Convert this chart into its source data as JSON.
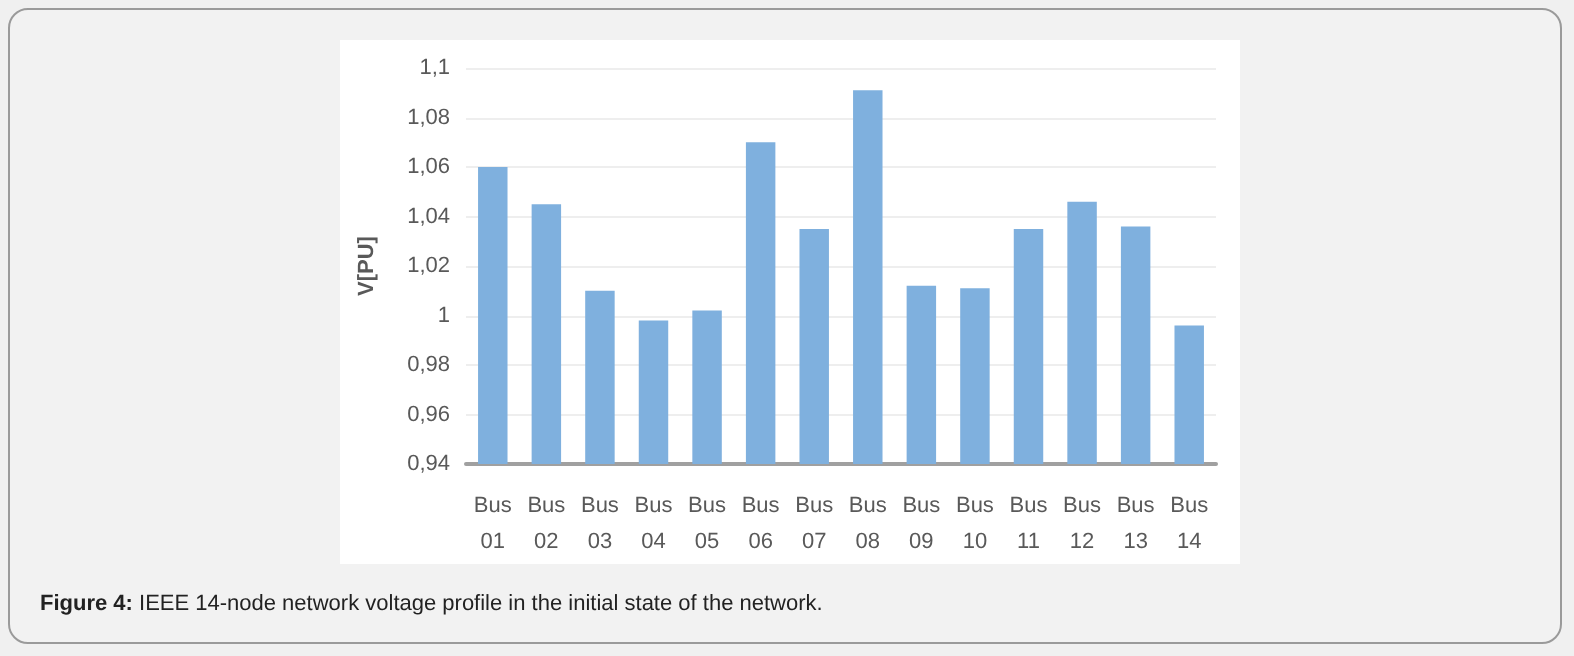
{
  "chart_data": {
    "type": "bar",
    "ylabel": "V[PU]",
    "categories": [
      "Bus 01",
      "Bus 02",
      "Bus 03",
      "Bus 04",
      "Bus 05",
      "Bus 06",
      "Bus 07",
      "Bus 08",
      "Bus 09",
      "Bus 10",
      "Bus 11",
      "Bus 12",
      "Bus 13",
      "Bus 14"
    ],
    "values": [
      1.06,
      1.045,
      1.01,
      0.998,
      1.002,
      1.07,
      1.035,
      1.091,
      1.012,
      1.011,
      1.035,
      1.046,
      1.036,
      0.996
    ],
    "color": "#7fb0de",
    "ylim": [
      0.94,
      1.1
    ],
    "yticks": [
      {
        "value": 0.94,
        "label": "0,94"
      },
      {
        "value": 0.96,
        "label": "0,96"
      },
      {
        "value": 0.98,
        "label": "0,98"
      },
      {
        "value": 1,
        "label": "1"
      },
      {
        "value": 1.02,
        "label": "1,02"
      },
      {
        "value": 1.04,
        "label": "1,04"
      },
      {
        "value": 1.06,
        "label": "1,06"
      },
      {
        "value": 1.08,
        "label": "1,08"
      },
      {
        "value": 1.1,
        "label": "1,1"
      }
    ],
    "grid": "y",
    "annotations": [
      "Figure 4: IEEE 14-node network voltage profile in the initial state of the network."
    ]
  }
}
